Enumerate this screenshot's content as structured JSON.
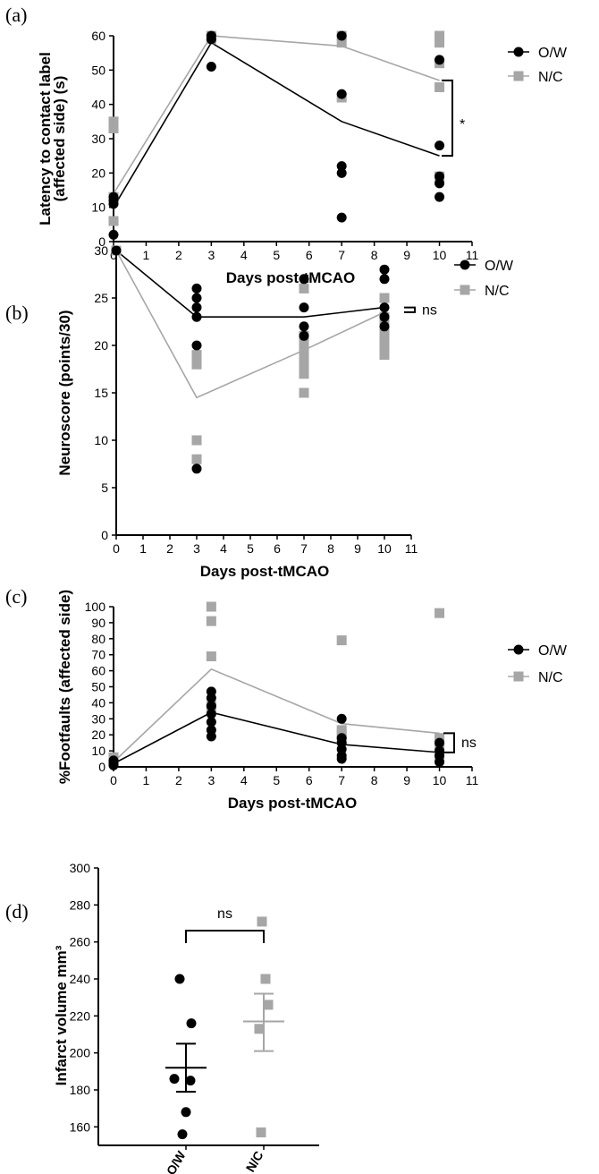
{
  "colors": {
    "ow": "#000000",
    "nc": "#a6a6a6",
    "axis": "#000000"
  },
  "chart_data": [
    {
      "id": "a",
      "panel_label": "(a)",
      "type": "scatter",
      "xlabel": "Days post-tMCAO",
      "ylabel": [
        "Latency to contact label",
        "(affected side) (s)"
      ],
      "xlim": [
        0,
        11
      ],
      "ylim": [
        0,
        60
      ],
      "xticks": [
        0,
        1,
        2,
        3,
        4,
        5,
        6,
        7,
        8,
        9,
        10,
        11
      ],
      "yticks": [
        0,
        10,
        20,
        30,
        40,
        50,
        60
      ],
      "legend": [
        {
          "key": "ow",
          "label": "O/W"
        },
        {
          "key": "nc",
          "label": "N/C"
        }
      ],
      "significance": {
        "label": "*",
        "between_series_at_x": 10
      },
      "series": [
        {
          "name": "N/C",
          "key": "nc",
          "marker": "square",
          "mean": [
            [
              0,
              14
            ],
            [
              3,
              60
            ],
            [
              7,
              57
            ],
            [
              10,
              47
            ]
          ],
          "points": [
            [
              0,
              35
            ],
            [
              0,
              33
            ],
            [
              0,
              13
            ],
            [
              0,
              6
            ],
            [
              0,
              6
            ],
            [
              3,
              60
            ],
            [
              3,
              59
            ],
            [
              7,
              60
            ],
            [
              7,
              58
            ],
            [
              7,
              42
            ],
            [
              10,
              60
            ],
            [
              10,
              58
            ],
            [
              10,
              52
            ],
            [
              10,
              45
            ],
            [
              10,
              19
            ]
          ]
        },
        {
          "name": "O/W",
          "key": "ow",
          "marker": "circle",
          "mean": [
            [
              0,
              10
            ],
            [
              3,
              58
            ],
            [
              7,
              35
            ],
            [
              10,
              25
            ]
          ],
          "points": [
            [
              0,
              13
            ],
            [
              0,
              12
            ],
            [
              0,
              11
            ],
            [
              0,
              2
            ],
            [
              3,
              60
            ],
            [
              3,
              59
            ],
            [
              3,
              51
            ],
            [
              7,
              60
            ],
            [
              7,
              43
            ],
            [
              7,
              22
            ],
            [
              7,
              20
            ],
            [
              7,
              7
            ],
            [
              10,
              53
            ],
            [
              10,
              28
            ],
            [
              10,
              19
            ],
            [
              10,
              17
            ],
            [
              10,
              13
            ]
          ]
        }
      ]
    },
    {
      "id": "b",
      "panel_label": "(b)",
      "type": "scatter",
      "xlabel": "Days post-tMCAO",
      "ylabel": [
        "Neuroscore (points/30)"
      ],
      "xlim": [
        0,
        11
      ],
      "ylim": [
        0,
        30
      ],
      "xticks": [
        0,
        1,
        2,
        3,
        4,
        5,
        6,
        7,
        8,
        9,
        10,
        11
      ],
      "yticks": [
        0,
        5,
        10,
        15,
        20,
        25,
        30
      ],
      "legend": [
        {
          "key": "ow",
          "label": "O/W"
        },
        {
          "key": "nc",
          "label": "N/C"
        }
      ],
      "significance": {
        "label": "ns",
        "between_series_at_x": 10
      },
      "series": [
        {
          "name": "N/C",
          "key": "nc",
          "marker": "square",
          "mean": [
            [
              0,
              30
            ],
            [
              3,
              14.5
            ],
            [
              7,
              19.5
            ],
            [
              10,
              23.5
            ]
          ],
          "points": [
            [
              0,
              30
            ],
            [
              3,
              19
            ],
            [
              3,
              18
            ],
            [
              3,
              10
            ],
            [
              3,
              8
            ],
            [
              7,
              26
            ],
            [
              7,
              21
            ],
            [
              7,
              20
            ],
            [
              7,
              19
            ],
            [
              7,
              18
            ],
            [
              7,
              17
            ],
            [
              7,
              15
            ],
            [
              10,
              25
            ],
            [
              10,
              23
            ],
            [
              10,
              22
            ],
            [
              10,
              21
            ],
            [
              10,
              20
            ],
            [
              10,
              19
            ]
          ]
        },
        {
          "name": "O/W",
          "key": "ow",
          "marker": "circle",
          "mean": [
            [
              0,
              30
            ],
            [
              3,
              23
            ],
            [
              7,
              23
            ],
            [
              10,
              24
            ]
          ],
          "points": [
            [
              0,
              30
            ],
            [
              3,
              26
            ],
            [
              3,
              25
            ],
            [
              3,
              24
            ],
            [
              3,
              23
            ],
            [
              3,
              20
            ],
            [
              3,
              7
            ],
            [
              7,
              27
            ],
            [
              7,
              24
            ],
            [
              7,
              22
            ],
            [
              7,
              21
            ],
            [
              10,
              28
            ],
            [
              10,
              27
            ],
            [
              10,
              24
            ],
            [
              10,
              23
            ],
            [
              10,
              22
            ]
          ]
        }
      ]
    },
    {
      "id": "c",
      "panel_label": "(c)",
      "type": "scatter",
      "xlabel": "Days post-tMCAO",
      "ylabel": [
        "%Footfaults (affected side)"
      ],
      "xlim": [
        0,
        11
      ],
      "ylim": [
        0,
        100
      ],
      "xticks": [
        0,
        1,
        2,
        3,
        4,
        5,
        6,
        7,
        8,
        9,
        10,
        11
      ],
      "yticks": [
        0,
        10,
        20,
        30,
        40,
        50,
        60,
        70,
        80,
        90,
        100
      ],
      "legend": [
        {
          "key": "ow",
          "label": "O/W"
        },
        {
          "key": "nc",
          "label": "N/C"
        }
      ],
      "significance": {
        "label": "ns",
        "between_series_at_x": 10
      },
      "series": [
        {
          "name": "N/C",
          "key": "nc",
          "marker": "square",
          "mean": [
            [
              0,
              3
            ],
            [
              3,
              61
            ],
            [
              7,
              27
            ],
            [
              10,
              21
            ]
          ],
          "points": [
            [
              0,
              6
            ],
            [
              0,
              4
            ],
            [
              3,
              100
            ],
            [
              3,
              91
            ],
            [
              3,
              69
            ],
            [
              3,
              38
            ],
            [
              3,
              36
            ],
            [
              7,
              79
            ],
            [
              7,
              23
            ],
            [
              7,
              20
            ],
            [
              7,
              17
            ],
            [
              10,
              96
            ],
            [
              10,
              18
            ],
            [
              10,
              16
            ],
            [
              10,
              12
            ],
            [
              10,
              6
            ]
          ]
        },
        {
          "name": "O/W",
          "key": "ow",
          "marker": "circle",
          "mean": [
            [
              0,
              2
            ],
            [
              3,
              34
            ],
            [
              7,
              14
            ],
            [
              10,
              9
            ]
          ],
          "points": [
            [
              0,
              4
            ],
            [
              0,
              3
            ],
            [
              0,
              2
            ],
            [
              0,
              1
            ],
            [
              3,
              47
            ],
            [
              3,
              43
            ],
            [
              3,
              38
            ],
            [
              3,
              33
            ],
            [
              3,
              28
            ],
            [
              3,
              23
            ],
            [
              3,
              19
            ],
            [
              7,
              30
            ],
            [
              7,
              18
            ],
            [
              7,
              15
            ],
            [
              7,
              11
            ],
            [
              7,
              7
            ],
            [
              7,
              5
            ],
            [
              10,
              15
            ],
            [
              10,
              10
            ],
            [
              10,
              7
            ],
            [
              10,
              3
            ]
          ]
        }
      ]
    },
    {
      "id": "d",
      "panel_label": "(d)",
      "type": "scatter",
      "ylabel": [
        "Infarct volume mm³"
      ],
      "ylim": [
        150,
        300
      ],
      "yticks": [
        160,
        180,
        200,
        220,
        240,
        260,
        280,
        300
      ],
      "categories": [
        "O/W",
        "N/C"
      ],
      "significance": {
        "label": "ns"
      },
      "series": [
        {
          "name": "O/W",
          "key": "ow",
          "marker": "circle",
          "mean": 192,
          "sem_low": 179,
          "sem_high": 205,
          "points": [
            240,
            216,
            186,
            185,
            168,
            156
          ]
        },
        {
          "name": "N/C",
          "key": "nc",
          "marker": "square",
          "mean": 217,
          "sem_low": 201,
          "sem_high": 232,
          "points": [
            271,
            240,
            226,
            213,
            157
          ]
        }
      ]
    }
  ]
}
